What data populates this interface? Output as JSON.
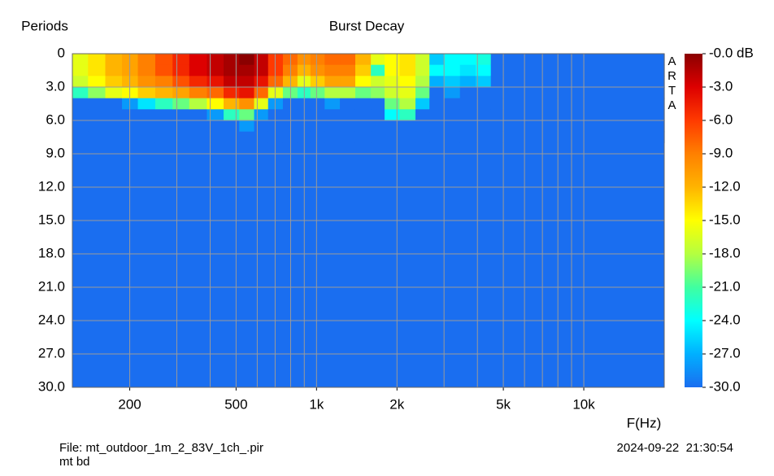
{
  "chart_data": {
    "type": "heatmap",
    "title": "Burst Decay",
    "ylabel": "Periods",
    "xlabel": "F(Hz)",
    "watermark": "ARTA",
    "footer_file": "File: mt_outdoor_1m_2_83V_1ch_.pir",
    "footer_note": "mt bd",
    "footer_date": "2024-09-22  21:30:54",
    "xscale": "log",
    "xlim": [
      122,
      20000
    ],
    "xticks": [
      {
        "value": 200,
        "label": "200"
      },
      {
        "value": 500,
        "label": "500"
      },
      {
        "value": 1000,
        "label": "1k"
      },
      {
        "value": 2000,
        "label": "2k"
      },
      {
        "value": 5000,
        "label": "5k"
      },
      {
        "value": 10000,
        "label": "10k"
      }
    ],
    "xgrid": [
      200,
      300,
      400,
      500,
      600,
      700,
      800,
      900,
      1000,
      2000,
      3000,
      4000,
      5000,
      6000,
      7000,
      8000,
      9000,
      10000,
      20000
    ],
    "ylim": [
      0,
      30
    ],
    "yinverted": true,
    "yticks": [
      0,
      {
        "value": 3,
        "label": "3.0"
      },
      {
        "value": 6,
        "label": "6.0"
      },
      {
        "value": 9,
        "label": "9.0"
      },
      {
        "value": 12,
        "label": "12.0"
      },
      {
        "value": 15,
        "label": "15.0"
      },
      {
        "value": 18,
        "label": "18.0"
      },
      {
        "value": 21,
        "label": "21.0"
      },
      {
        "value": 24,
        "label": "24.0"
      },
      {
        "value": 27,
        "label": "27.0"
      },
      {
        "value": 30,
        "label": "30.0"
      }
    ],
    "grid": true,
    "zlim": [
      -30,
      0
    ],
    "zticks": [
      {
        "value": 0,
        "label": "-0.0 dB"
      },
      {
        "value": -3,
        "label": "-3.0"
      },
      {
        "value": -6,
        "label": "-6.0"
      },
      {
        "value": -9,
        "label": "-9.0"
      },
      {
        "value": -12,
        "label": "-12.0"
      },
      {
        "value": -15,
        "label": "-15.0"
      },
      {
        "value": -18,
        "label": "-18.0"
      },
      {
        "value": -21,
        "label": "-21.0"
      },
      {
        "value": -24,
        "label": "-24.0"
      },
      {
        "value": -27,
        "label": "-27.0"
      },
      {
        "value": -30,
        "label": "-30.0"
      }
    ],
    "colormap": [
      "#8b0000",
      "#dd0000",
      "#ff3a00",
      "#ff8000",
      "#ffb400",
      "#ffff00",
      "#b4ff40",
      "#40ffa0",
      "#00ffff",
      "#00b0ff",
      "#1a6ef0"
    ],
    "frequencies": [
      130,
      150,
      175,
      200,
      230,
      270,
      310,
      360,
      420,
      480,
      550,
      620,
      700,
      800,
      900,
      1000,
      1150,
      1300,
      1500,
      1700,
      1900,
      2200,
      2500,
      2800,
      3200,
      3700,
      4200,
      4800
    ],
    "periods": [
      0,
      1,
      2,
      3,
      4,
      5,
      6,
      7
    ],
    "z": [
      [
        -16,
        -16,
        -17,
        -22,
        -30,
        -30,
        -30,
        -30
      ],
      [
        -14,
        -14,
        -15,
        -19,
        -30,
        -30,
        -30,
        -30
      ],
      [
        -12,
        -12,
        -13,
        -16,
        -30,
        -30,
        -30,
        -30
      ],
      [
        -11,
        -11,
        -12,
        -15,
        -28,
        -30,
        -30,
        -30
      ],
      [
        -9,
        -9,
        -10,
        -13,
        -25,
        -30,
        -30,
        -30
      ],
      [
        -7,
        -7,
        -9,
        -12,
        -22,
        -30,
        -30,
        -30
      ],
      [
        -5,
        -5,
        -7,
        -11,
        -20,
        -30,
        -30,
        -30
      ],
      [
        -3,
        -3,
        -5,
        -9,
        -18,
        -30,
        -30,
        -30
      ],
      [
        -2,
        -2,
        -4,
        -8,
        -15,
        -28,
        -30,
        -30
      ],
      [
        -1,
        -1,
        -2,
        -5,
        -12,
        -22,
        -30,
        -30
      ],
      [
        0,
        -1,
        -2,
        -4,
        -10,
        -20,
        -28,
        -30
      ],
      [
        -2,
        -2,
        -4,
        -8,
        -16,
        -28,
        -30,
        -30
      ],
      [
        -6,
        -6,
        -8,
        -16,
        -28,
        -30,
        -30,
        -30
      ],
      [
        -8,
        -9,
        -12,
        -20,
        -30,
        -30,
        -30,
        -30
      ],
      [
        -10,
        -12,
        -16,
        -22,
        -30,
        -30,
        -30,
        -30
      ],
      [
        -9,
        -10,
        -13,
        -20,
        -30,
        -30,
        -30,
        -30
      ],
      [
        -8,
        -9,
        -11,
        -18,
        -28,
        -30,
        -30,
        -30
      ],
      [
        -8,
        -9,
        -11,
        -18,
        -30,
        -30,
        -30,
        -30
      ],
      [
        -12,
        -13,
        -15,
        -20,
        -30,
        -30,
        -30,
        -30
      ],
      [
        -16,
        -22,
        -17,
        -19,
        -30,
        -30,
        -30,
        -30
      ],
      [
        -15,
        -15,
        -16,
        -17,
        -20,
        -24,
        -30,
        -30
      ],
      [
        -14,
        -14,
        -15,
        -16,
        -18,
        -22,
        -30,
        -30
      ],
      [
        -17,
        -17,
        -18,
        -20,
        -26,
        -30,
        -30,
        -30
      ],
      [
        -26,
        -24,
        -27,
        -30,
        -30,
        -30,
        -30,
        -30
      ],
      [
        -24,
        -24,
        -26,
        -28,
        -30,
        -30,
        -30,
        -30
      ],
      [
        -24,
        -25,
        -27,
        -30,
        -30,
        -30,
        -30,
        -30
      ],
      [
        -23,
        -24,
        -26,
        -30,
        -30,
        -30,
        -30,
        -30
      ],
      [
        -30,
        -30,
        -30,
        -30,
        -30,
        -30,
        -30,
        -30
      ]
    ]
  }
}
